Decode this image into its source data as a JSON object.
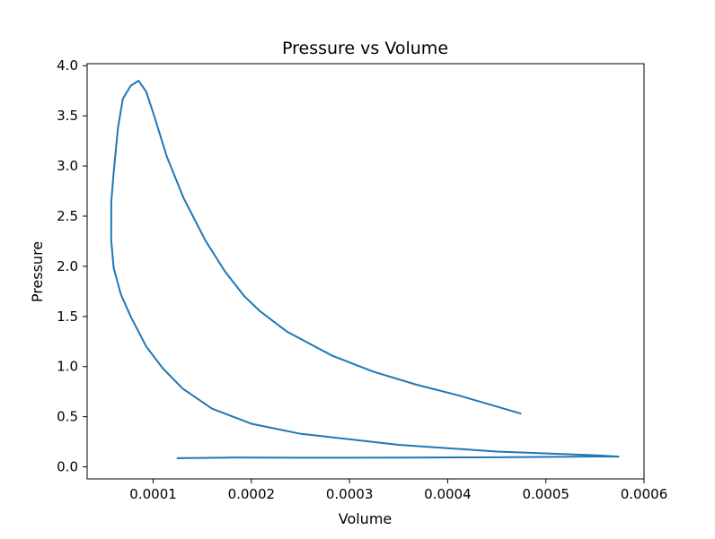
{
  "chart_data": {
    "type": "line",
    "title": "Pressure vs Volume",
    "xlabel": "Volume",
    "ylabel": "Pressure",
    "xlim": [
      3.27e-05,
      0.0006
    ],
    "ylim": [
      -0.12,
      4.02
    ],
    "xticks": [
      0.0001,
      0.0002,
      0.0003,
      0.0004,
      0.0005,
      0.0006
    ],
    "xtick_labels": [
      "0.0001",
      "0.0002",
      "0.0003",
      "0.0004",
      "0.0005",
      "0.0006"
    ],
    "yticks": [
      0.0,
      0.5,
      1.0,
      1.5,
      2.0,
      2.5,
      3.0,
      3.5,
      4.0
    ],
    "ytick_labels": [
      "0.0",
      "0.5",
      "1.0",
      "1.5",
      "2.0",
      "2.5",
      "3.0",
      "3.5",
      "4.0"
    ],
    "grid": false,
    "legend": false,
    "colors": {
      "line": "#1f77b4",
      "axes": "#000000",
      "background": "#ffffff"
    },
    "series": [
      {
        "x": [
          0.000124,
          0.00018,
          0.00025,
          0.00035,
          0.00045,
          0.00055,
          0.000574,
          0.00055,
          0.00045,
          0.00035,
          0.00025,
          0.0002,
          0.00016,
          0.00013,
          0.00011,
          9.29e-05,
          7.7e-05,
          6.71e-05,
          5.98e-05,
          5.72e-05,
          5.73e-05,
          5.96e-05,
          6.41e-05,
          6.91e-05,
          7.71e-05,
          8.51e-05,
          9.29e-05,
          0.000101,
          0.000114,
          0.000131,
          0.000153,
          0.000173,
          0.000193,
          0.000209,
          0.000236,
          0.000282,
          0.000324,
          0.000368,
          0.000412,
          0.000475
        ],
        "y": [
          0.087,
          0.093,
          0.091,
          0.092,
          0.096,
          0.103,
          0.102,
          0.116,
          0.153,
          0.22,
          0.33,
          0.43,
          0.58,
          0.78,
          0.98,
          1.2,
          1.5,
          1.72,
          1.98,
          2.26,
          2.64,
          2.92,
          3.38,
          3.67,
          3.8,
          3.85,
          3.74,
          3.5,
          3.09,
          2.68,
          2.26,
          1.95,
          1.7,
          1.55,
          1.35,
          1.11,
          0.95,
          0.82,
          0.71,
          0.53
        ]
      }
    ]
  }
}
